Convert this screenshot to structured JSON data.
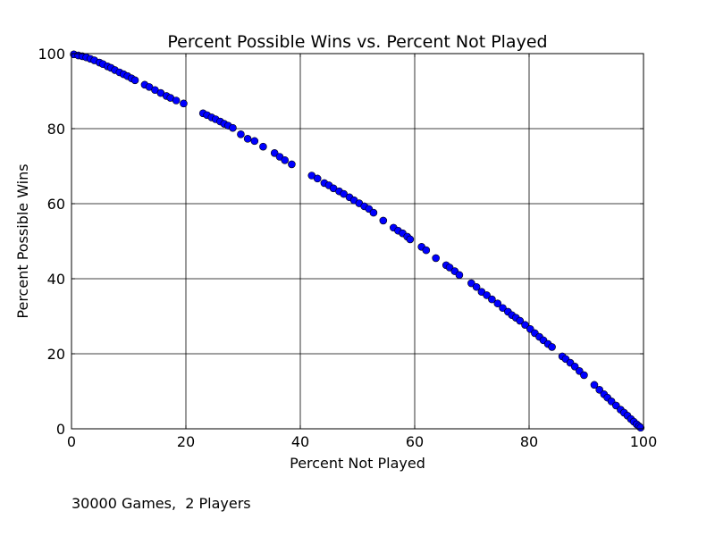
{
  "chart_data": {
    "type": "scatter",
    "title": "Percent Possible Wins vs. Percent Not Played",
    "xlabel": "Percent Not Played",
    "ylabel": "Percent Possible Wins",
    "xlim": [
      0,
      100
    ],
    "ylim": [
      0,
      100
    ],
    "xticks": [
      "0",
      "20",
      "40",
      "60",
      "80",
      "100"
    ],
    "yticks": [
      "0",
      "20",
      "40",
      "60",
      "80",
      "100"
    ],
    "grid": true,
    "marker_color": "#0000ff",
    "points": [
      [
        0.4,
        99.8
      ],
      [
        1.2,
        99.5
      ],
      [
        1.9,
        99.3
      ],
      [
        2.6,
        99.0
      ],
      [
        3.3,
        98.6
      ],
      [
        4.0,
        98.2
      ],
      [
        4.9,
        97.6
      ],
      [
        5.5,
        97.2
      ],
      [
        6.3,
        96.6
      ],
      [
        6.9,
        96.2
      ],
      [
        7.6,
        95.6
      ],
      [
        8.4,
        95.0
      ],
      [
        9.1,
        94.5
      ],
      [
        9.8,
        94.0
      ],
      [
        10.5,
        93.4
      ],
      [
        11.1,
        92.9
      ],
      [
        12.8,
        91.7
      ],
      [
        13.6,
        91.1
      ],
      [
        14.6,
        90.3
      ],
      [
        15.6,
        89.5
      ],
      [
        16.6,
        88.7
      ],
      [
        17.3,
        88.2
      ],
      [
        18.3,
        87.5
      ],
      [
        19.6,
        86.7
      ],
      [
        23.0,
        84.1
      ],
      [
        23.7,
        83.6
      ],
      [
        24.5,
        83.0
      ],
      [
        25.2,
        82.5
      ],
      [
        26.0,
        81.9
      ],
      [
        26.7,
        81.3
      ],
      [
        27.4,
        80.8
      ],
      [
        28.2,
        80.2
      ],
      [
        29.6,
        78.5
      ],
      [
        30.8,
        77.3
      ],
      [
        32.0,
        76.7
      ],
      [
        33.5,
        75.2
      ],
      [
        35.5,
        73.5
      ],
      [
        36.4,
        72.5
      ],
      [
        37.3,
        71.6
      ],
      [
        38.5,
        70.5
      ],
      [
        42.0,
        67.5
      ],
      [
        43.0,
        66.7
      ],
      [
        44.2,
        65.5
      ],
      [
        45.0,
        64.9
      ],
      [
        45.8,
        64.1
      ],
      [
        46.8,
        63.3
      ],
      [
        47.6,
        62.6
      ],
      [
        48.6,
        61.7
      ],
      [
        49.4,
        60.9
      ],
      [
        50.3,
        60.1
      ],
      [
        51.2,
        59.3
      ],
      [
        52.0,
        58.6
      ],
      [
        52.8,
        57.6
      ],
      [
        54.5,
        55.5
      ],
      [
        56.3,
        53.6
      ],
      [
        57.1,
        52.8
      ],
      [
        57.9,
        52.1
      ],
      [
        58.7,
        51.2
      ],
      [
        59.2,
        50.5
      ],
      [
        61.2,
        48.5
      ],
      [
        62.0,
        47.6
      ],
      [
        63.7,
        45.5
      ],
      [
        65.5,
        43.6
      ],
      [
        66.1,
        43.0
      ],
      [
        67.0,
        42.0
      ],
      [
        67.8,
        41.0
      ],
      [
        69.9,
        38.8
      ],
      [
        70.8,
        37.8
      ],
      [
        71.7,
        36.5
      ],
      [
        72.6,
        35.6
      ],
      [
        73.5,
        34.5
      ],
      [
        74.5,
        33.4
      ],
      [
        75.4,
        32.2
      ],
      [
        76.3,
        31.2
      ],
      [
        77.0,
        30.3
      ],
      [
        77.7,
        29.6
      ],
      [
        78.4,
        28.8
      ],
      [
        79.3,
        27.7
      ],
      [
        80.2,
        26.6
      ],
      [
        81.0,
        25.5
      ],
      [
        81.8,
        24.5
      ],
      [
        82.5,
        23.6
      ],
      [
        83.3,
        22.6
      ],
      [
        84.0,
        21.8
      ],
      [
        85.8,
        19.3
      ],
      [
        86.4,
        18.6
      ],
      [
        87.2,
        17.6
      ],
      [
        88.0,
        16.6
      ],
      [
        88.8,
        15.4
      ],
      [
        89.6,
        14.3
      ],
      [
        91.4,
        11.7
      ],
      [
        92.3,
        10.4
      ],
      [
        93.1,
        9.2
      ],
      [
        93.7,
        8.3
      ],
      [
        94.4,
        7.3
      ],
      [
        95.2,
        6.2
      ],
      [
        96.0,
        5.1
      ],
      [
        96.6,
        4.3
      ],
      [
        97.2,
        3.5
      ],
      [
        97.8,
        2.6
      ],
      [
        98.3,
        1.9
      ],
      [
        98.8,
        1.2
      ],
      [
        99.2,
        0.7
      ],
      [
        99.5,
        0.3
      ]
    ]
  },
  "footnote": "30000 Games,  2 Players"
}
